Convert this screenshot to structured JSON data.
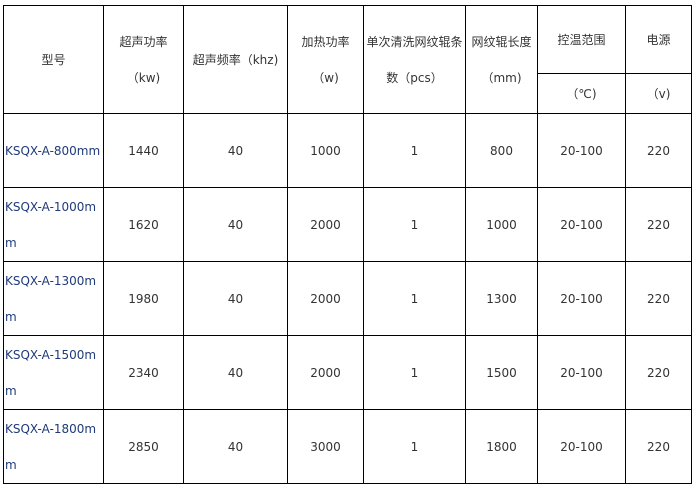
{
  "headers": {
    "model": "型号",
    "ultrasonic_power": "超声功率（kw)",
    "ultrasonic_freq": "超声频率（khz)",
    "heating_power": [
      "加热功率",
      "（w)"
    ],
    "rollers_per_wash": [
      "单次清洗网纹辊条",
      "数（pcs）"
    ],
    "roller_length": [
      "网纹辊长度",
      "（mm)"
    ],
    "temp_range": "控温范围",
    "temp_unit": "（℃)",
    "power_supply": "电源",
    "power_unit": "（v)"
  },
  "rows": [
    {
      "model": "KSQX-A-800mm",
      "power": "1440",
      "freq": "40",
      "heat": "1000",
      "count": "1",
      "length": "800",
      "temp": "20-100",
      "voltage": "220"
    },
    {
      "model": "KSQX-A-1000mm",
      "power": "1620",
      "freq": "40",
      "heat": "2000",
      "count": "1",
      "length": "1000",
      "temp": "20-100",
      "voltage": "220"
    },
    {
      "model": "KSQX-A-1300mm",
      "power": "1980",
      "freq": "40",
      "heat": "2000",
      "count": "1",
      "length": "1300",
      "temp": "20-100",
      "voltage": "220"
    },
    {
      "model": "KSQX-A-1500mm",
      "power": "2340",
      "freq": "40",
      "heat": "2000",
      "count": "1",
      "length": "1500",
      "temp": "20-100",
      "voltage": "220"
    },
    {
      "model": "KSQX-A-1800mm",
      "power": "2850",
      "freq": "40",
      "heat": "3000",
      "count": "1",
      "length": "1800",
      "temp": "20-100",
      "voltage": "220"
    }
  ]
}
